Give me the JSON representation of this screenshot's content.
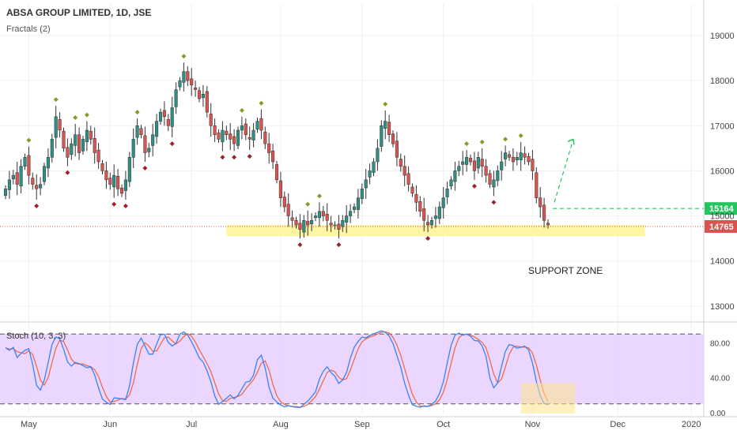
{
  "chart_data": {
    "type": "candlestick",
    "title": "ABSA GROUP LIMITED, 1D, JSE",
    "indicator_label": "Fractals (2)",
    "stoch_label": "Stoch (10, 3, 3)",
    "annotation": "SUPPORT ZONE",
    "current_price": 14765,
    "current_price_label": "14765",
    "target_price": 15164,
    "target_price_label": "15164",
    "support_zone": [
      14550,
      14800
    ],
    "price_axis": {
      "ylim": [
        12700,
        19700
      ],
      "ticks": [
        "13000",
        "14000",
        "15000",
        "16000",
        "17000",
        "18000",
        "19000"
      ]
    },
    "stoch_axis": {
      "ylim": [
        -2,
        102
      ],
      "ticks": [
        "0.00",
        "40.00",
        "80.00"
      ],
      "bands": [
        10,
        90
      ]
    },
    "months": [
      {
        "label": "May",
        "index": 6
      },
      {
        "label": "Jun",
        "index": 27
      },
      {
        "label": "Jul",
        "index": 48
      },
      {
        "label": "Aug",
        "index": 71
      },
      {
        "label": "Sep",
        "index": 92
      },
      {
        "label": "Oct",
        "index": 113
      },
      {
        "label": "Nov",
        "index": 136
      },
      {
        "label": "Dec",
        "index": 158
      },
      {
        "label": "2020",
        "index": 177
      }
    ],
    "close": [
      15600,
      15800,
      15900,
      15700,
      16100,
      16300,
      15900,
      15700,
      15600,
      15700,
      16100,
      16300,
      16700,
      17200,
      16900,
      16500,
      16300,
      16600,
      16800,
      16400,
      16700,
      16900,
      16700,
      16400,
      16200,
      16000,
      15800,
      15700,
      15900,
      15600,
      15500,
      15800,
      16300,
      16700,
      17000,
      16800,
      16400,
      16500,
      16800,
      17100,
      17300,
      17200,
      17000,
      17400,
      17800,
      18000,
      18200,
      18000,
      17900,
      17800,
      17600,
      17700,
      17300,
      17000,
      16800,
      16700,
      16900,
      16800,
      16700,
      16600,
      16900,
      17000,
      16800,
      16700,
      16900,
      17100,
      16900,
      16600,
      16400,
      16200,
      15800,
      15400,
      15200,
      15000,
      14900,
      14800,
      14700,
      14900,
      14800,
      14900,
      15000,
      15100,
      15000,
      14900,
      14800,
      14800,
      14700,
      14900,
      15000,
      15100,
      15200,
      15400,
      15600,
      15800,
      16000,
      16200,
      16500,
      17000,
      17100,
      16800,
      16600,
      16300,
      16100,
      15900,
      15700,
      15500,
      15300,
      15100,
      14900,
      14800,
      14900,
      15000,
      15200,
      15400,
      15600,
      15800,
      16000,
      16100,
      16200,
      16300,
      16200,
      16000,
      16300,
      16100,
      15900,
      15700,
      15800,
      16000,
      16200,
      16400,
      16300,
      16200,
      16300,
      16400,
      16300,
      16200,
      16000,
      15400,
      15200,
      14900,
      14800
    ]
  }
}
